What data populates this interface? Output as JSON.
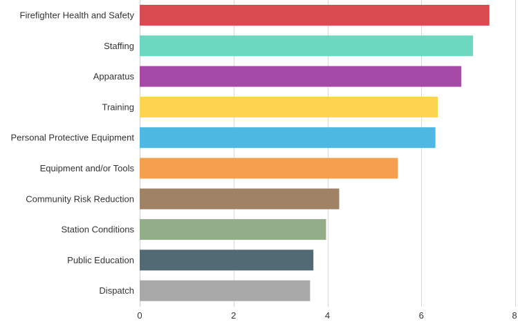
{
  "chart_data": {
    "type": "bar",
    "orientation": "horizontal",
    "title": "",
    "xlabel": "",
    "ylabel": "",
    "categories": [
      "Firefighter Health and Safety",
      "Staffing",
      "Apparatus",
      "Training",
      "Personal Protective Equipment",
      "Equipment and/or Tools",
      "Community Risk Reduction",
      "Station Conditions",
      "Public Education",
      "Dispatch"
    ],
    "values": [
      7.45,
      7.1,
      6.85,
      6.35,
      6.3,
      5.5,
      4.25,
      3.97,
      3.7,
      3.63
    ],
    "colors": [
      "#d94b50",
      "#6cd8bf",
      "#a54aa6",
      "#fdd34f",
      "#4db9e2",
      "#f5a04f",
      "#a08265",
      "#93ad89",
      "#526a73",
      "#a8a8a8"
    ],
    "xlim": [
      0,
      8
    ],
    "xticks": [
      0,
      2,
      4,
      6,
      8
    ],
    "xtick_labels": [
      "0",
      "2",
      "4",
      "6",
      "8"
    ],
    "grid": true,
    "legend": "none"
  }
}
